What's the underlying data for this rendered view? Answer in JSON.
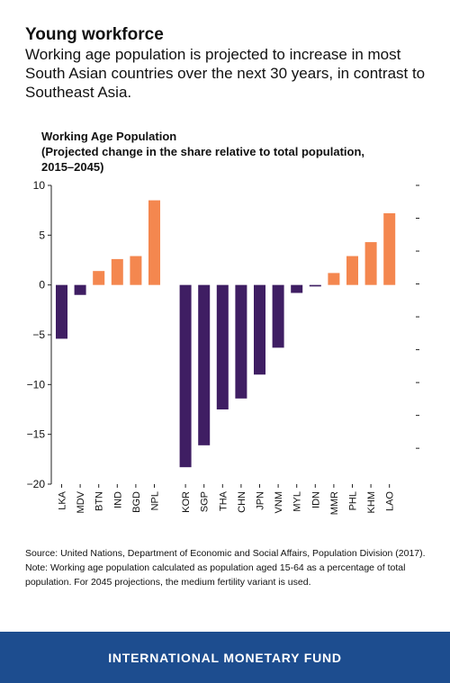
{
  "header": {
    "title": "Young workforce",
    "subtitle": "Working age population is projected to increase in most South Asian countries over the next 30 years, in contrast to Southeast Asia."
  },
  "chart_heading": {
    "line1": "Working Age Population",
    "line2": "(Projected change in the share relative to total population,",
    "line3": "2015–2045)"
  },
  "chart_data": {
    "type": "bar",
    "title": "Working Age Population (Projected change in the share relative to total population, 2015–2045)",
    "xlabel": "",
    "ylabel": "",
    "ylim": [
      -20,
      10
    ],
    "yticks": [
      10,
      5,
      0,
      -5,
      -10,
      -15,
      -20
    ],
    "ytick_labels": [
      "10",
      "5",
      "0",
      "−5",
      "−10",
      "−15",
      "−20"
    ],
    "grid": false,
    "groups": [
      [
        "LKA",
        "MDV",
        "BTN",
        "IND",
        "BGD",
        "NPL"
      ],
      [
        "KOR",
        "SGP",
        "THA",
        "CHN",
        "JPN",
        "VNM",
        "MYL",
        "IDN",
        "MMR",
        "PHL",
        "KHM",
        "LAO"
      ]
    ],
    "categories": [
      "LKA",
      "MDV",
      "BTN",
      "IND",
      "BGD",
      "NPL",
      "KOR",
      "SGP",
      "THA",
      "CHN",
      "JPN",
      "VNM",
      "MYL",
      "IDN",
      "MMR",
      "PHL",
      "KHM",
      "LAO"
    ],
    "values": [
      -5.4,
      -1.0,
      1.4,
      2.6,
      2.9,
      8.5,
      -18.3,
      -16.1,
      -12.5,
      -11.4,
      -9.0,
      -6.3,
      -0.8,
      -0.15,
      1.2,
      2.9,
      4.3,
      7.2
    ],
    "colors": {
      "positive": "#f4874f",
      "negative": "#3f1e63"
    }
  },
  "footer": {
    "source": "Source: United Nations, Department of Economic and Social Affairs, Population Division (2017).",
    "note": "Note: Working age population calculated as population aged 15-64 as a percentage of total population. For 2045 projections, the medium fertility variant is used."
  },
  "brand": {
    "name": "INTERNATIONAL MONETARY FUND",
    "bar_color": "#1d4d8f"
  }
}
